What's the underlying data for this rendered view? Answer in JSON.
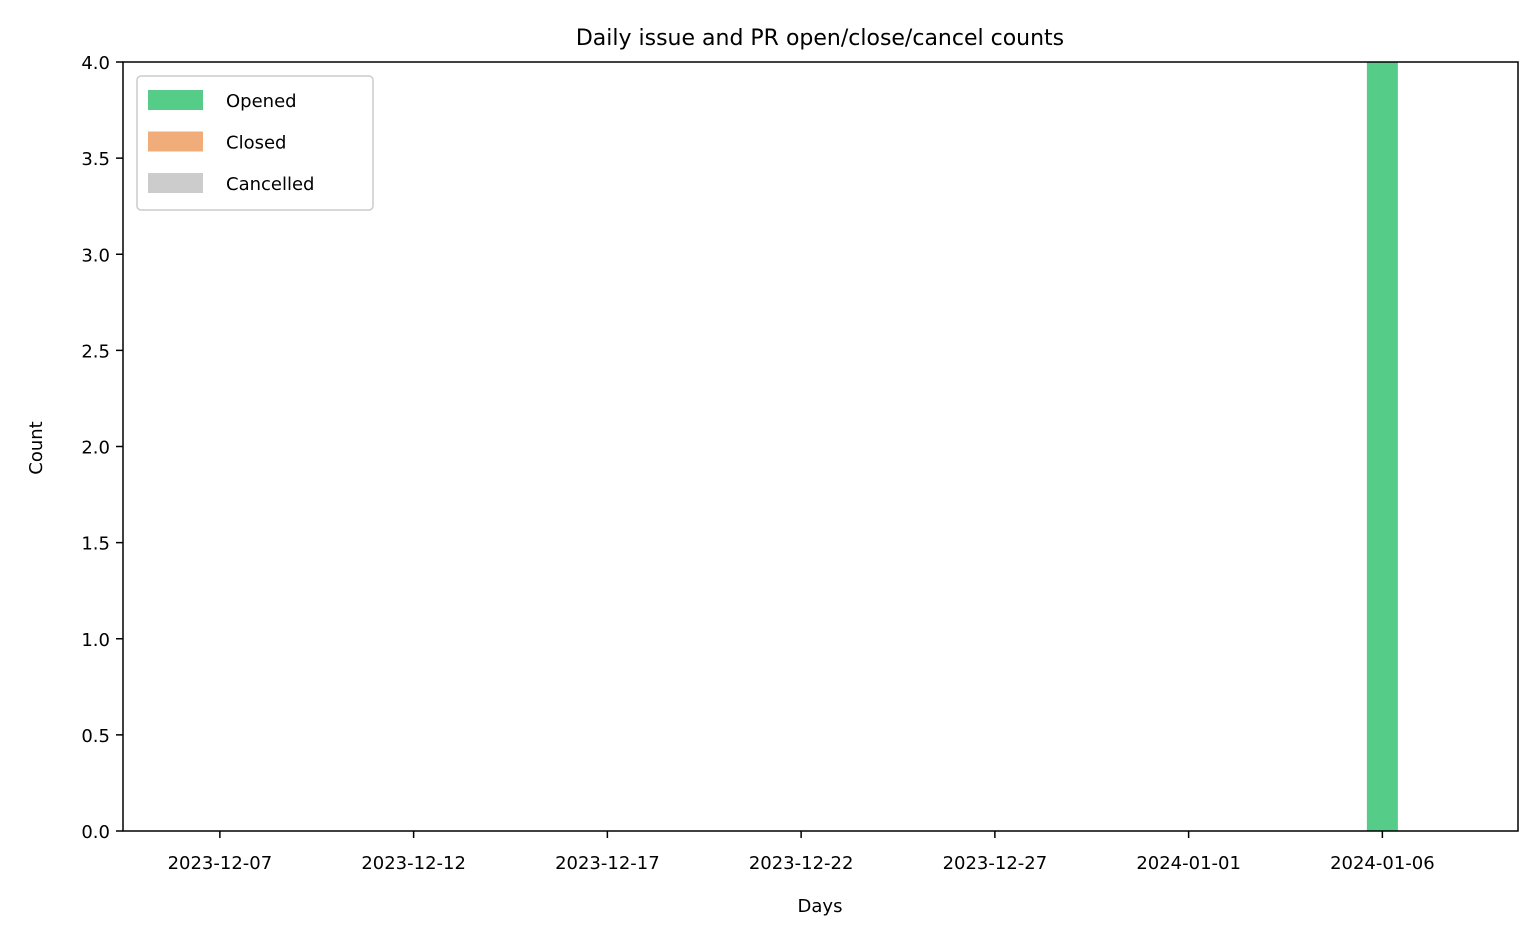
{
  "chart_data": {
    "type": "bar",
    "title": "Daily issue and PR open/close/cancel counts",
    "xlabel": "Days",
    "ylabel": "Count",
    "xlim": [
      "2023-12-05",
      "2024-01-09"
    ],
    "ylim": [
      0,
      4.0
    ],
    "x_ticks": [
      "2023-12-07",
      "2023-12-12",
      "2023-12-17",
      "2023-12-22",
      "2023-12-27",
      "2024-01-01",
      "2024-01-06"
    ],
    "y_ticks": [
      "0.0",
      "0.5",
      "1.0",
      "1.5",
      "2.0",
      "2.5",
      "3.0",
      "3.5",
      "4.0"
    ],
    "stacked": true,
    "legend_position": "top-left",
    "grid": false,
    "x": [
      "2024-01-06"
    ],
    "series": [
      {
        "name": "Opened",
        "color": "#55cc88",
        "values": [
          4
        ]
      },
      {
        "name": "Closed",
        "color": "#f0ad7a",
        "values": [
          0
        ]
      },
      {
        "name": "Cancelled",
        "color": "#cccccc",
        "values": [
          0
        ]
      }
    ]
  }
}
